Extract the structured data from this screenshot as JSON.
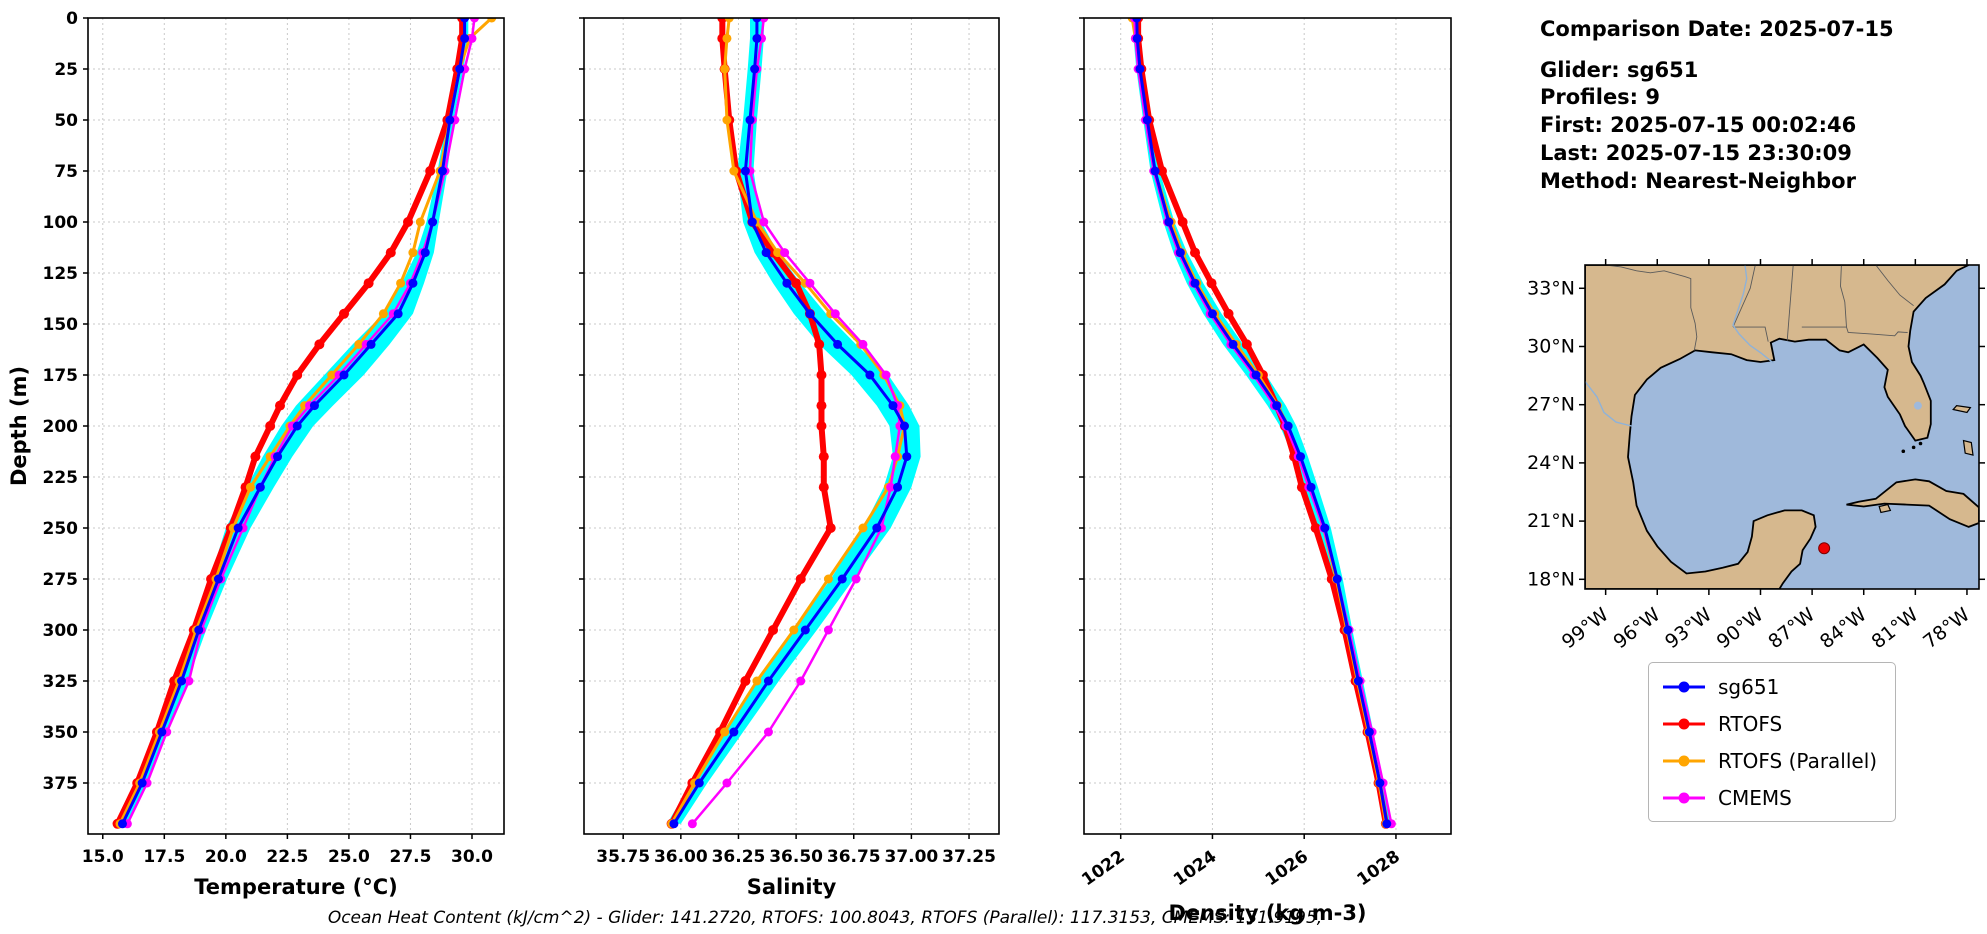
{
  "info_panel": {
    "comparison_date": "Comparison Date: 2025-07-15",
    "glider": "Glider: sg651",
    "profiles": "Profiles: 9",
    "first": "First: 2025-07-15 00:02:46",
    "last": "Last: 2025-07-15 23:30:09",
    "method": "Method: Nearest-Neighbor"
  },
  "caption": "Ocean Heat Content (kJ/cm^2) - Glider: 141.2720,  RTOFS: 100.8043,  RTOFS (Parallel): 117.3153,  CMEMS: 131.9195,",
  "legend": {
    "entries": [
      {
        "label": "sg651",
        "color": "#0000ff"
      },
      {
        "label": "RTOFS",
        "color": "#ff0000"
      },
      {
        "label": "RTOFS (Parallel)",
        "color": "#ffa500"
      },
      {
        "label": "CMEMS",
        "color": "#ff00ff"
      }
    ]
  },
  "map": {
    "extent": {
      "lon_min": -100.2,
      "lon_max": -77.3,
      "lat_min": 17.5,
      "lat_max": 34.2
    },
    "land_color": "#d6b88e",
    "ocean_color": "#9fb9db",
    "lat_ticks": [
      {
        "value": 33,
        "label": "33°N"
      },
      {
        "value": 30,
        "label": "30°N"
      },
      {
        "value": 27,
        "label": "27°N"
      },
      {
        "value": 24,
        "label": "24°N"
      },
      {
        "value": 21,
        "label": "21°N"
      },
      {
        "value": 18,
        "label": "18°N"
      }
    ],
    "lon_ticks": [
      {
        "value": -99,
        "label": "99°W"
      },
      {
        "value": -96,
        "label": "96°W"
      },
      {
        "value": -93,
        "label": "93°W"
      },
      {
        "value": -90,
        "label": "90°W"
      },
      {
        "value": -87,
        "label": "87°W"
      },
      {
        "value": -84,
        "label": "84°W"
      },
      {
        "value": -81,
        "label": "81°W"
      },
      {
        "value": -78,
        "label": "78°W"
      }
    ],
    "marker": {
      "lon": -86.3,
      "lat": 19.6,
      "color": "#ee0000"
    }
  },
  "chart_data": [
    {
      "name": "temperature-profile",
      "type": "line",
      "xlabel": "Temperature (°C)",
      "ylabel": "Depth (m)",
      "xlim": [
        14.4,
        31.3
      ],
      "ylim": [
        0,
        400
      ],
      "xticks": {
        "values": [
          15,
          17.5,
          20,
          22.5,
          25,
          27.5,
          30
        ],
        "labels": [
          "15.0",
          "17.5",
          "20.0",
          "22.5",
          "25.0",
          "27.5",
          "30.0"
        ]
      },
      "yticks": {
        "values": [
          0,
          25,
          50,
          75,
          100,
          125,
          150,
          175,
          200,
          225,
          250,
          275,
          300,
          325,
          350,
          375
        ],
        "labels": [
          "0",
          "25",
          "50",
          "75",
          "100",
          "125",
          "150",
          "175",
          "200",
          "225",
          "250",
          "275",
          "300",
          "325",
          "350",
          "375"
        ]
      },
      "depths": [
        0,
        10,
        25,
        50,
        75,
        100,
        115,
        130,
        145,
        160,
        175,
        190,
        200,
        215,
        230,
        250,
        275,
        300,
        325,
        350,
        375,
        395
      ],
      "band": {
        "series": "sg651",
        "color": "#00ffff",
        "halfwidths": [
          0.15,
          0.15,
          0.15,
          0.15,
          0.2,
          0.25,
          0.35,
          0.45,
          0.6,
          0.75,
          0.8,
          0.75,
          0.65,
          0.6,
          0.55,
          0.5,
          0.35,
          0.3,
          0.25,
          0.2,
          0.2,
          0.2
        ]
      },
      "series": [
        {
          "name": "sg651",
          "color": "#0000ff",
          "values": [
            29.7,
            29.7,
            29.5,
            29.1,
            28.8,
            28.4,
            28.1,
            27.6,
            27.0,
            25.9,
            24.8,
            23.6,
            22.9,
            22.1,
            21.4,
            20.5,
            19.7,
            18.9,
            18.2,
            17.4,
            16.6,
            15.8
          ]
        },
        {
          "name": "RTOFS",
          "color": "#ff0000",
          "values": [
            29.6,
            29.6,
            29.4,
            29.0,
            28.3,
            27.4,
            26.7,
            25.8,
            24.8,
            23.8,
            22.9,
            22.2,
            21.8,
            21.2,
            20.8,
            20.2,
            19.4,
            18.7,
            17.9,
            17.2,
            16.4,
            15.6
          ]
        },
        {
          "name": "RTOFS (Parallel)",
          "color": "#ffa500",
          "values": [
            30.8,
            29.9,
            29.5,
            29.1,
            28.7,
            27.9,
            27.6,
            27.1,
            26.4,
            25.4,
            24.3,
            23.2,
            22.6,
            21.8,
            21.0,
            20.3,
            19.6,
            18.8,
            18.1,
            17.3,
            16.5,
            15.7
          ]
        },
        {
          "name": "CMEMS",
          "color": "#ff00ff",
          "values": [
            30.1,
            30.0,
            29.7,
            29.3,
            28.9,
            28.4,
            28.0,
            27.5,
            26.8,
            25.7,
            24.6,
            23.4,
            22.7,
            22.0,
            21.4,
            20.7,
            19.8,
            19.0,
            18.5,
            17.6,
            16.8,
            16.0
          ]
        }
      ]
    },
    {
      "name": "salinity-profile",
      "type": "line",
      "xlabel": "Salinity",
      "ylabel": "",
      "xlim": [
        35.58,
        37.38
      ],
      "ylim": [
        0,
        400
      ],
      "xticks": {
        "values": [
          35.75,
          36.0,
          36.25,
          36.5,
          36.75,
          37.0,
          37.25
        ],
        "labels": [
          "35.75",
          "36.00",
          "36.25",
          "36.50",
          "36.75",
          "37.00",
          "37.25"
        ]
      },
      "depths": [
        0,
        10,
        25,
        50,
        75,
        100,
        115,
        130,
        145,
        160,
        175,
        190,
        200,
        215,
        230,
        250,
        275,
        300,
        325,
        350,
        375,
        395
      ],
      "band": {
        "series": "sg651",
        "color": "#00ffff",
        "halfwidths": [
          0.03,
          0.03,
          0.03,
          0.03,
          0.035,
          0.04,
          0.05,
          0.06,
          0.07,
          0.08,
          0.08,
          0.07,
          0.065,
          0.06,
          0.06,
          0.06,
          0.05,
          0.05,
          0.045,
          0.04,
          0.035,
          0.03
        ]
      },
      "series": [
        {
          "name": "sg651",
          "color": "#0000ff",
          "values": [
            36.33,
            36.33,
            36.32,
            36.3,
            36.28,
            36.31,
            36.37,
            36.46,
            36.56,
            36.68,
            36.82,
            36.92,
            36.97,
            36.98,
            36.94,
            36.85,
            36.7,
            36.54,
            36.38,
            36.23,
            36.08,
            35.97
          ]
        },
        {
          "name": "RTOFS",
          "color": "#ff0000",
          "values": [
            36.18,
            36.18,
            36.19,
            36.21,
            36.24,
            36.31,
            36.4,
            36.5,
            36.56,
            36.6,
            36.61,
            36.61,
            36.61,
            36.62,
            36.62,
            36.65,
            36.52,
            36.4,
            36.28,
            36.17,
            36.05,
            35.96
          ]
        },
        {
          "name": "RTOFS (Parallel)",
          "color": "#ffa500",
          "values": [
            36.21,
            36.2,
            36.19,
            36.2,
            36.23,
            36.33,
            36.42,
            36.54,
            36.65,
            36.78,
            36.88,
            36.95,
            36.97,
            36.94,
            36.9,
            36.79,
            36.64,
            36.49,
            36.33,
            36.19,
            36.06,
            35.96
          ]
        },
        {
          "name": "CMEMS",
          "color": "#ff00ff",
          "values": [
            36.36,
            36.35,
            36.33,
            36.31,
            36.3,
            36.36,
            36.45,
            36.56,
            36.67,
            36.79,
            36.89,
            36.94,
            36.95,
            36.93,
            36.91,
            36.87,
            36.76,
            36.64,
            36.52,
            36.38,
            36.2,
            36.05
          ]
        }
      ]
    },
    {
      "name": "density-profile",
      "type": "line",
      "xlabel": "Density (kg m-3)",
      "ylabel": "",
      "xlim": [
        1021.2,
        1029.2
      ],
      "ylim": [
        0,
        400
      ],
      "xticks": {
        "values": [
          1022,
          1024,
          1026,
          1028
        ],
        "labels": [
          "1022",
          "1024",
          "1026",
          "1028"
        ]
      },
      "depths": [
        0,
        10,
        25,
        50,
        75,
        100,
        115,
        130,
        145,
        160,
        175,
        190,
        200,
        215,
        230,
        250,
        275,
        300,
        325,
        350,
        375,
        395
      ],
      "band": {
        "series": "sg651",
        "color": "#00ffff",
        "halfwidths": [
          0.08,
          0.08,
          0.08,
          0.09,
          0.1,
          0.12,
          0.15,
          0.18,
          0.2,
          0.22,
          0.22,
          0.2,
          0.18,
          0.16,
          0.15,
          0.13,
          0.12,
          0.1,
          0.1,
          0.09,
          0.08,
          0.08
        ]
      },
      "series": [
        {
          "name": "sg651",
          "color": "#0000ff",
          "values": [
            1022.35,
            1022.36,
            1022.42,
            1022.58,
            1022.75,
            1023.05,
            1023.3,
            1023.62,
            1024.0,
            1024.45,
            1024.95,
            1025.4,
            1025.65,
            1025.92,
            1026.15,
            1026.45,
            1026.72,
            1026.95,
            1027.18,
            1027.42,
            1027.65,
            1027.8
          ]
        },
        {
          "name": "RTOFS",
          "color": "#ff0000",
          "values": [
            1022.38,
            1022.38,
            1022.45,
            1022.62,
            1022.9,
            1023.35,
            1023.62,
            1023.98,
            1024.35,
            1024.75,
            1025.1,
            1025.4,
            1025.58,
            1025.78,
            1025.95,
            1026.25,
            1026.6,
            1026.88,
            1027.12,
            1027.38,
            1027.62,
            1027.78
          ]
        },
        {
          "name": "RTOFS (Parallel)",
          "color": "#ffa500",
          "values": [
            1022.25,
            1022.32,
            1022.4,
            1022.56,
            1022.74,
            1023.1,
            1023.34,
            1023.66,
            1024.05,
            1024.52,
            1025.0,
            1025.42,
            1025.65,
            1025.9,
            1026.12,
            1026.42,
            1026.7,
            1026.93,
            1027.16,
            1027.4,
            1027.63,
            1027.78
          ]
        },
        {
          "name": "CMEMS",
          "color": "#ff00ff",
          "values": [
            1022.3,
            1022.32,
            1022.38,
            1022.54,
            1022.72,
            1023.02,
            1023.26,
            1023.58,
            1023.95,
            1024.4,
            1024.9,
            1025.35,
            1025.6,
            1025.87,
            1026.1,
            1026.42,
            1026.72,
            1026.98,
            1027.22,
            1027.48,
            1027.72,
            1027.9
          ]
        }
      ]
    }
  ]
}
